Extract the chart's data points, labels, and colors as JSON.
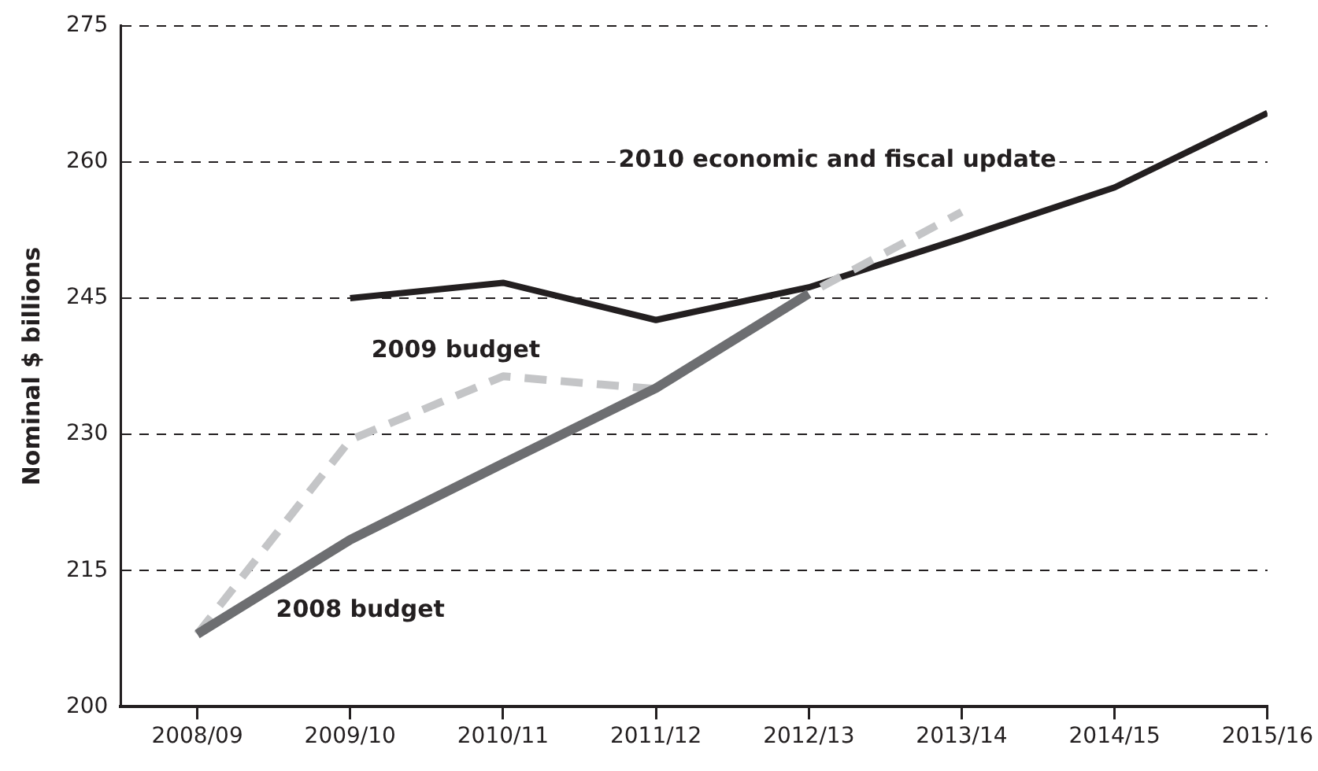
{
  "chart_data": {
    "type": "line",
    "ylabel": "Nominal $ billions",
    "categories": [
      "2008/09",
      "2009/10",
      "2010/11",
      "2011/12",
      "2012/13",
      "2013/14",
      "2014/15",
      "2015/16"
    ],
    "series": [
      {
        "name": "2008 budget",
        "color": "#6d6e71",
        "values": [
          208,
          218.4,
          226.8,
          235.1,
          245.5,
          null,
          null,
          null
        ]
      },
      {
        "name": "2009 budget",
        "color": "#c4c5c7",
        "line_style": "dashed",
        "values": [
          208,
          229.4,
          236.4,
          235,
          245.5,
          254.5,
          null,
          null
        ]
      },
      {
        "name": "2010 economic and fiscal update",
        "color": "#231f20",
        "values": [
          null,
          245,
          246.7,
          242.6,
          246.2,
          251.6,
          257.2,
          265.4
        ]
      }
    ],
    "ylim": [
      200,
      275
    ],
    "yticks": [
      200,
      215,
      230,
      245,
      260,
      275
    ],
    "grid": "y",
    "legend": false,
    "marker": "none"
  }
}
